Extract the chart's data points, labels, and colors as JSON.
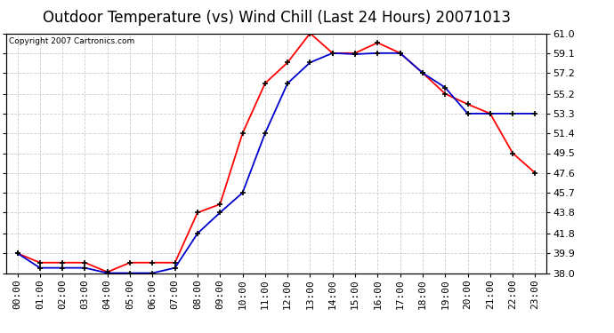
{
  "title": "Outdoor Temperature (vs) Wind Chill (Last 24 Hours) 20071013",
  "copyright": "Copyright 2007 Cartronics.com",
  "x_labels": [
    "00:00",
    "01:00",
    "02:00",
    "03:00",
    "04:00",
    "05:00",
    "06:00",
    "07:00",
    "08:00",
    "09:00",
    "10:00",
    "11:00",
    "12:00",
    "13:00",
    "14:00",
    "15:00",
    "16:00",
    "17:00",
    "18:00",
    "19:00",
    "20:00",
    "21:00",
    "22:00",
    "23:00"
  ],
  "temp_red": [
    39.9,
    39.0,
    39.0,
    39.0,
    38.1,
    39.0,
    39.0,
    39.0,
    43.8,
    44.6,
    51.4,
    56.2,
    58.2,
    61.0,
    59.1,
    59.1,
    60.1,
    59.1,
    57.2,
    55.2,
    54.2,
    53.3,
    49.5,
    47.6
  ],
  "temp_blue": [
    39.9,
    38.5,
    38.5,
    38.5,
    38.0,
    38.0,
    38.0,
    38.5,
    41.8,
    43.8,
    45.7,
    51.4,
    56.2,
    58.2,
    59.1,
    59.0,
    59.1,
    59.1,
    57.2,
    55.8,
    53.3,
    53.3,
    53.3,
    53.3
  ],
  "ylim": [
    38.0,
    61.0
  ],
  "yticks": [
    38.0,
    39.9,
    41.8,
    43.8,
    45.7,
    47.6,
    49.5,
    51.4,
    53.3,
    55.2,
    57.2,
    59.1,
    61.0
  ],
  "red_color": "#ff0000",
  "blue_color": "#0000cc",
  "bg_color": "#ffffff",
  "plot_bg_color": "#ffffff",
  "grid_color": "#cccccc",
  "title_fontsize": 12,
  "tick_fontsize": 8
}
